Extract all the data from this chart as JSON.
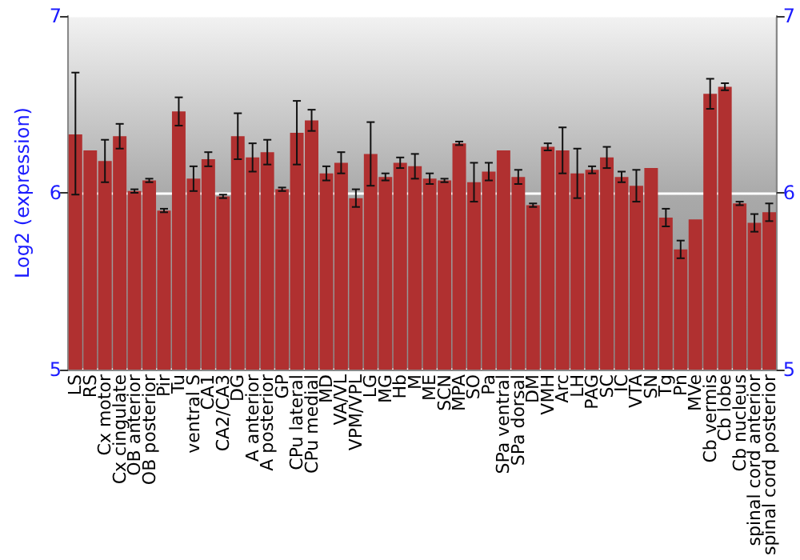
{
  "chart_data": {
    "type": "bar",
    "ylabel": "Log2 (expression)",
    "categories": [
      "LS",
      "RS",
      "Cx motor",
      "Cx cingulate",
      "OB anterior",
      "OB posterior",
      "Pir",
      "Tu",
      "ventral S",
      "CA1",
      "CA2/CA3",
      "DG",
      "A anterior",
      "A posterior",
      "GP",
      "CPu lateral",
      "CPu medial",
      "MD",
      "VA/VL",
      "VPM/VPL",
      "LG",
      "MG",
      "Hb",
      "M",
      "ME",
      "SCN",
      "MPA",
      "SO",
      "Pa",
      "SPa ventral",
      "SPa dorsal",
      "DM",
      "VMH",
      "Arc",
      "LH",
      "PAG",
      "SC",
      "IC",
      "VTA",
      "SN",
      "Tg",
      "Pn",
      "MVe",
      "Cb vermis",
      "Cb lobe",
      "Cb nucleus",
      "spinal cord anterior",
      "spinal cord posterior"
    ],
    "values": [
      6.33,
      6.24,
      6.18,
      6.32,
      6.01,
      6.07,
      5.9,
      6.46,
      6.08,
      6.19,
      5.98,
      6.32,
      6.2,
      6.23,
      6.02,
      6.34,
      6.41,
      6.11,
      6.17,
      5.97,
      6.22,
      6.09,
      6.17,
      6.15,
      6.08,
      6.07,
      6.28,
      6.06,
      6.12,
      6.24,
      6.09,
      5.93,
      6.26,
      6.24,
      6.11,
      6.13,
      6.2,
      6.09,
      6.04,
      6.14,
      5.86,
      5.68,
      5.85,
      6.56,
      6.6,
      5.94,
      5.83,
      5.89
    ],
    "errors": [
      [
        5.99,
        6.68
      ],
      null,
      0.12,
      0.07,
      0.01,
      0.01,
      0.01,
      0.08,
      0.07,
      0.04,
      0.01,
      0.13,
      0.08,
      0.07,
      0.01,
      0.18,
      0.06,
      0.04,
      0.06,
      0.05,
      0.18,
      0.02,
      0.03,
      0.07,
      0.03,
      0.01,
      0.01,
      0.11,
      0.05,
      null,
      0.04,
      0.01,
      0.02,
      0.13,
      0.14,
      0.02,
      0.06,
      0.03,
      0.09,
      null,
      0.05,
      0.05,
      null,
      0.085,
      0.02,
      0.01,
      0.05,
      0.05
    ],
    "color": "#b03030",
    "ylim": [
      5,
      7
    ],
    "yticks": [
      5,
      6,
      7
    ],
    "y2lim": [
      5,
      7
    ],
    "y2ticks": [
      5,
      6,
      7
    ],
    "grid": "y"
  }
}
